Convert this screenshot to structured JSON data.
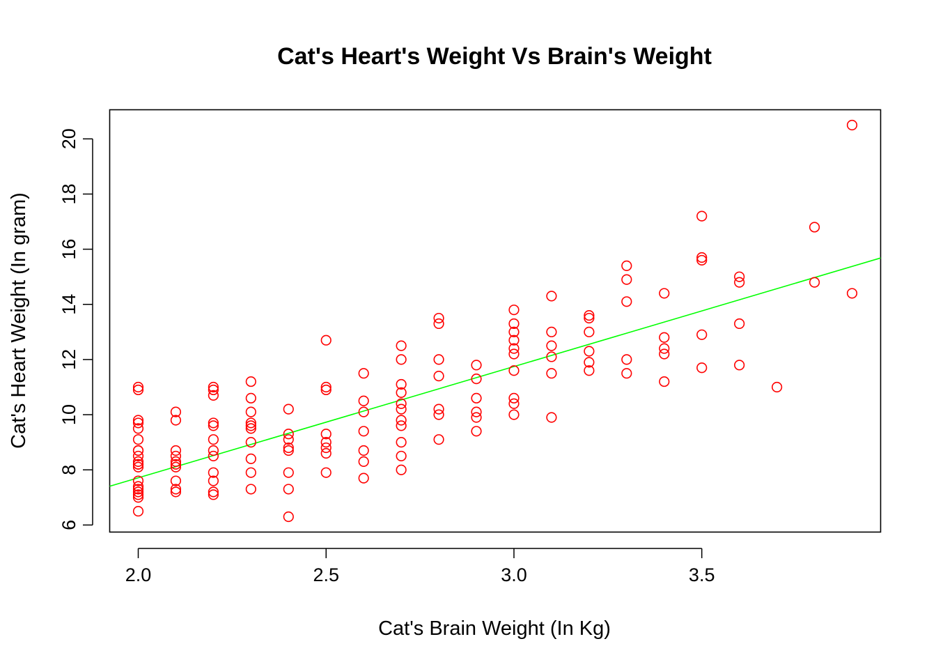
{
  "chart_data": {
    "type": "scatter",
    "title": "Cat's Heart's Weight Vs Brain's Weight",
    "xlabel": "Cat's Brain Weight (In Kg)",
    "ylabel": "Cat's Heart Weight (In gram)",
    "xlim": [
      1.924,
      3.976
    ],
    "ylim": [
      5.744,
      21.056
    ],
    "xticks": [
      2.0,
      2.5,
      3.0,
      3.5
    ],
    "xtick_labels": [
      "2.0",
      "2.5",
      "3.0",
      "3.5"
    ],
    "yticks": [
      6,
      8,
      10,
      12,
      14,
      16,
      18,
      20
    ],
    "ytick_labels": [
      "6",
      "8",
      "10",
      "12",
      "14",
      "16",
      "18",
      "20"
    ],
    "grid": false,
    "legend": "none",
    "point_color": "#ff0000",
    "line_color": "#00ff00",
    "regression": {
      "intercept": -0.357,
      "slope": 4.034
    },
    "points": [
      [
        2.0,
        7.0
      ],
      [
        2.0,
        7.4
      ],
      [
        2.0,
        9.5
      ],
      [
        2.0,
        7.2
      ],
      [
        2.0,
        7.3
      ],
      [
        2.0,
        7.6
      ],
      [
        2.0,
        8.1
      ],
      [
        2.0,
        8.2
      ],
      [
        2.0,
        8.3
      ],
      [
        2.0,
        8.5
      ],
      [
        2.0,
        8.7
      ],
      [
        2.0,
        9.8
      ],
      [
        2.0,
        7.1
      ],
      [
        2.0,
        8.7
      ],
      [
        2.0,
        9.1
      ],
      [
        2.0,
        9.7
      ],
      [
        2.0,
        10.9
      ],
      [
        2.0,
        11.0
      ],
      [
        2.0,
        8.2
      ],
      [
        2.0,
        6.5
      ],
      [
        2.1,
        7.2
      ],
      [
        2.1,
        7.6
      ],
      [
        2.1,
        8.1
      ],
      [
        2.1,
        8.2
      ],
      [
        2.1,
        8.3
      ],
      [
        2.1,
        8.5
      ],
      [
        2.1,
        8.7
      ],
      [
        2.1,
        9.8
      ],
      [
        2.1,
        10.1
      ],
      [
        2.1,
        7.3
      ],
      [
        2.2,
        7.1
      ],
      [
        2.2,
        7.2
      ],
      [
        2.2,
        7.6
      ],
      [
        2.2,
        7.9
      ],
      [
        2.2,
        8.5
      ],
      [
        2.2,
        8.7
      ],
      [
        2.2,
        9.1
      ],
      [
        2.2,
        9.6
      ],
      [
        2.2,
        9.7
      ],
      [
        2.2,
        10.7
      ],
      [
        2.2,
        10.9
      ],
      [
        2.2,
        11.0
      ],
      [
        2.3,
        7.3
      ],
      [
        2.3,
        7.9
      ],
      [
        2.3,
        8.4
      ],
      [
        2.3,
        9.0
      ],
      [
        2.3,
        9.5
      ],
      [
        2.3,
        9.6
      ],
      [
        2.3,
        9.7
      ],
      [
        2.3,
        10.1
      ],
      [
        2.3,
        10.6
      ],
      [
        2.3,
        11.2
      ],
      [
        2.4,
        6.3
      ],
      [
        2.4,
        7.3
      ],
      [
        2.4,
        7.9
      ],
      [
        2.4,
        8.7
      ],
      [
        2.4,
        8.8
      ],
      [
        2.4,
        9.1
      ],
      [
        2.4,
        9.3
      ],
      [
        2.4,
        10.2
      ],
      [
        2.5,
        7.9
      ],
      [
        2.5,
        8.6
      ],
      [
        2.5,
        8.8
      ],
      [
        2.5,
        9.0
      ],
      [
        2.5,
        9.3
      ],
      [
        2.5,
        10.9
      ],
      [
        2.5,
        11.0
      ],
      [
        2.5,
        12.7
      ],
      [
        2.6,
        7.7
      ],
      [
        2.6,
        8.3
      ],
      [
        2.6,
        8.7
      ],
      [
        2.6,
        9.4
      ],
      [
        2.6,
        10.1
      ],
      [
        2.6,
        10.5
      ],
      [
        2.6,
        11.5
      ],
      [
        2.7,
        8.0
      ],
      [
        2.7,
        8.5
      ],
      [
        2.7,
        9.0
      ],
      [
        2.7,
        9.6
      ],
      [
        2.7,
        9.8
      ],
      [
        2.7,
        10.2
      ],
      [
        2.7,
        10.4
      ],
      [
        2.7,
        10.8
      ],
      [
        2.7,
        11.1
      ],
      [
        2.7,
        12.0
      ],
      [
        2.7,
        12.5
      ],
      [
        2.8,
        9.1
      ],
      [
        2.8,
        10.0
      ],
      [
        2.8,
        10.2
      ],
      [
        2.8,
        11.4
      ],
      [
        2.8,
        12.0
      ],
      [
        2.8,
        13.3
      ],
      [
        2.8,
        13.5
      ],
      [
        2.9,
        9.4
      ],
      [
        2.9,
        9.9
      ],
      [
        2.9,
        10.1
      ],
      [
        2.9,
        10.6
      ],
      [
        2.9,
        11.3
      ],
      [
        2.9,
        11.8
      ],
      [
        3.0,
        10.0
      ],
      [
        3.0,
        10.4
      ],
      [
        3.0,
        10.6
      ],
      [
        3.0,
        11.6
      ],
      [
        3.0,
        12.2
      ],
      [
        3.0,
        12.4
      ],
      [
        3.0,
        12.7
      ],
      [
        3.0,
        13.0
      ],
      [
        3.0,
        13.3
      ],
      [
        3.0,
        13.8
      ],
      [
        3.1,
        9.9
      ],
      [
        3.1,
        11.5
      ],
      [
        3.1,
        12.1
      ],
      [
        3.1,
        12.5
      ],
      [
        3.1,
        13.0
      ],
      [
        3.1,
        14.3
      ],
      [
        3.2,
        11.6
      ],
      [
        3.2,
        11.9
      ],
      [
        3.2,
        12.3
      ],
      [
        3.2,
        13.0
      ],
      [
        3.2,
        13.5
      ],
      [
        3.2,
        13.6
      ],
      [
        3.3,
        11.5
      ],
      [
        3.3,
        12.0
      ],
      [
        3.3,
        14.1
      ],
      [
        3.3,
        14.9
      ],
      [
        3.3,
        15.4
      ],
      [
        3.4,
        11.2
      ],
      [
        3.4,
        12.2
      ],
      [
        3.4,
        12.4
      ],
      [
        3.4,
        12.8
      ],
      [
        3.4,
        14.4
      ],
      [
        3.5,
        11.7
      ],
      [
        3.5,
        12.9
      ],
      [
        3.5,
        15.6
      ],
      [
        3.5,
        15.7
      ],
      [
        3.5,
        17.2
      ],
      [
        3.6,
        11.8
      ],
      [
        3.6,
        13.3
      ],
      [
        3.6,
        14.8
      ],
      [
        3.6,
        15.0
      ],
      [
        3.7,
        11.0
      ],
      [
        3.8,
        14.8
      ],
      [
        3.8,
        16.8
      ],
      [
        3.9,
        14.4
      ],
      [
        3.9,
        20.5
      ]
    ]
  }
}
